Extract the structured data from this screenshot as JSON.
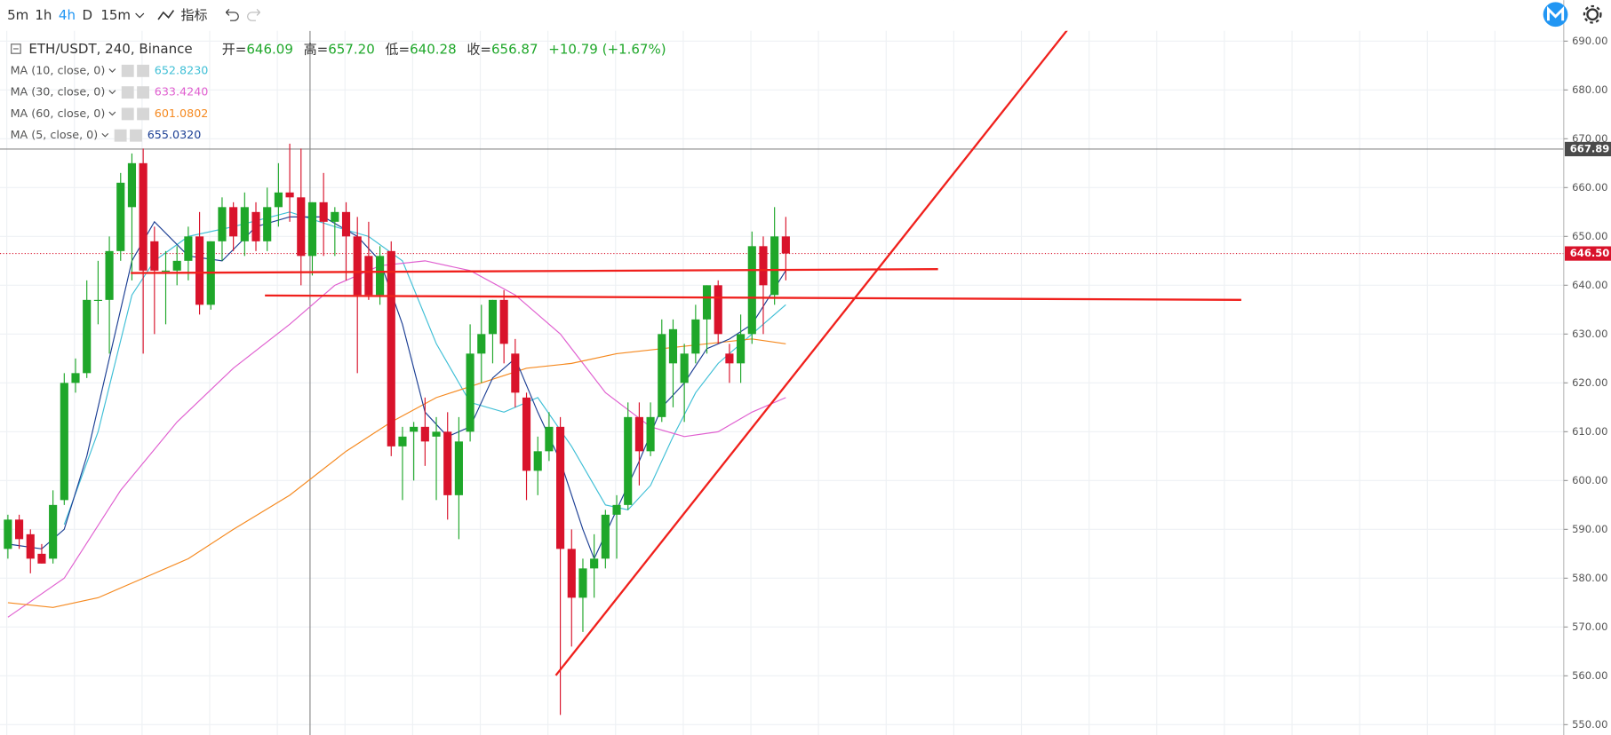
{
  "toolbar": {
    "intervals": [
      "5m",
      "1h",
      "4h",
      "D",
      "15m"
    ],
    "indicators": "指标"
  },
  "chart_data": {
    "type": "candlestick",
    "symbol": "ETH/USDT, 240, Binance",
    "ohlc": [
      {
        "label": "开=",
        "value": "646.09"
      },
      {
        "label": "高=",
        "value": "657.20"
      },
      {
        "label": "低=",
        "value": "640.28"
      },
      {
        "label": "收=",
        "value": "656.87"
      }
    ],
    "change": "+10.79 (+1.67%)",
    "up_color": "#1fa72a",
    "down_color": "#d9132b",
    "xlim": [
      -0.7,
      138
    ],
    "ylim": [
      548,
      692
    ],
    "yticks": [
      {
        "value": 550,
        "label": "550.00"
      },
      {
        "value": 560,
        "label": "560.00"
      },
      {
        "value": 570,
        "label": "570.00"
      },
      {
        "value": 580,
        "label": "580.00"
      },
      {
        "value": 590,
        "label": "590.00"
      },
      {
        "value": 600,
        "label": "600.00"
      },
      {
        "value": 610,
        "label": "610.00"
      },
      {
        "value": 620,
        "label": "620.00"
      },
      {
        "value": 630,
        "label": "630.00"
      },
      {
        "value": 640,
        "label": "640.00"
      },
      {
        "value": 650,
        "label": "650.00"
      },
      {
        "value": 660,
        "label": "660.00"
      },
      {
        "value": 670,
        "label": "670.00"
      },
      {
        "value": 680,
        "label": "680.00"
      },
      {
        "value": 690,
        "label": "690.00"
      }
    ],
    "grid": true,
    "open": [
      586,
      592,
      589,
      585,
      584,
      596,
      620,
      622,
      637,
      637,
      647,
      656,
      665,
      649,
      643,
      643,
      645,
      650,
      636,
      649,
      656,
      649,
      655,
      649,
      656,
      659,
      658,
      646,
      657,
      653,
      655,
      650,
      646,
      638,
      647,
      607,
      610,
      611,
      609,
      610,
      597,
      610,
      626,
      630,
      637,
      626,
      617,
      602,
      606,
      611,
      586,
      576,
      582,
      584,
      593,
      595,
      613,
      606,
      613,
      624,
      620,
      626,
      633,
      640,
      626,
      624,
      630,
      648,
      638,
      650
    ],
    "high": [
      593,
      593,
      590,
      587,
      598,
      622,
      625,
      641,
      645,
      650,
      663,
      667,
      668,
      652,
      647,
      648,
      652,
      655,
      649,
      658,
      657,
      659,
      657,
      660,
      665,
      669,
      668,
      657,
      663,
      656,
      657,
      654,
      653,
      648,
      649,
      611,
      612,
      617,
      613,
      614,
      613,
      632,
      636,
      637,
      639,
      629,
      618,
      609,
      614,
      613,
      590,
      584,
      589,
      594,
      597,
      616,
      616,
      616,
      633,
      633,
      628,
      636,
      640,
      641,
      628,
      634,
      651,
      650,
      656,
      654
    ],
    "low": [
      584,
      586,
      581,
      583,
      583,
      595,
      618,
      621,
      632,
      626,
      645,
      641,
      626,
      630,
      632,
      640,
      641,
      634,
      635,
      645,
      647,
      646,
      647,
      647,
      652,
      653,
      640,
      642,
      646,
      646,
      641,
      622,
      637,
      636,
      605,
      596,
      600,
      603,
      596,
      592,
      588,
      608,
      620,
      624,
      624,
      615,
      596,
      597,
      604,
      552,
      566,
      569,
      576,
      582,
      584,
      594,
      599,
      605,
      612,
      615,
      612,
      624,
      626,
      628,
      620,
      620,
      628,
      630,
      636,
      641
    ],
    "close": [
      592,
      588,
      584,
      583,
      595,
      620,
      622,
      637,
      637,
      647,
      661,
      665,
      643,
      643,
      643,
      645,
      650,
      636,
      649,
      656,
      650,
      656,
      649,
      656,
      659,
      658,
      646,
      657,
      653,
      655,
      650,
      638,
      638,
      646,
      607,
      609,
      611,
      608,
      610,
      597,
      608,
      626,
      630,
      637,
      628,
      618,
      602,
      606,
      611,
      586,
      576,
      582,
      584,
      593,
      595,
      613,
      606,
      613,
      630,
      631,
      626,
      633,
      640,
      630,
      624,
      630,
      648,
      640,
      650,
      646.5
    ],
    "ma_series": [
      {
        "name": "MA (10, close, 0)",
        "color": "#3fbfd6",
        "value_label": "652.8230",
        "x": [
          5,
          8,
          11,
          13,
          16,
          20,
          25,
          29,
          32,
          35,
          38,
          41,
          44,
          47,
          50,
          53,
          55,
          57,
          59,
          61,
          63,
          66,
          69
        ],
        "values": [
          591,
          610,
          638,
          645,
          650,
          652,
          655,
          652,
          650,
          645,
          628,
          616,
          614,
          617,
          607,
          595,
          594,
          599,
          609,
          618,
          624,
          630,
          636
        ]
      },
      {
        "name": "MA (30, close, 0)",
        "color": "#e060d0",
        "value_label": "633.4240",
        "x": [
          0,
          5,
          10,
          15,
          20,
          25,
          29,
          33,
          37,
          41,
          45,
          49,
          53,
          57,
          60,
          63,
          66,
          69
        ],
        "values": [
          572,
          580,
          598,
          612,
          623,
          632,
          640,
          644,
          645,
          643,
          638,
          630,
          618,
          611,
          609,
          610,
          614,
          617
        ]
      },
      {
        "name": "MA (60, close, 0)",
        "color": "#f5891f",
        "value_label": "601.0802",
        "x": [
          0,
          4,
          8,
          12,
          16,
          20,
          25,
          30,
          34,
          38,
          42,
          46,
          50,
          54,
          58,
          62,
          66,
          69
        ],
        "values": [
          575,
          574,
          576,
          580,
          584,
          590,
          597,
          606,
          612,
          617,
          620,
          623,
          624,
          626,
          627,
          628,
          629,
          628
        ]
      },
      {
        "name": "MA (5, close, 0)",
        "color": "#1c3f94",
        "value_label": "655.0320",
        "x": [
          0,
          3,
          5,
          7,
          9,
          11,
          13,
          16,
          19,
          22,
          25,
          28,
          31,
          33,
          35,
          37,
          39,
          41,
          43,
          45,
          47,
          49,
          51,
          52,
          54,
          56,
          58,
          60,
          62,
          64,
          66,
          69
        ],
        "values": [
          587,
          586,
          590,
          605,
          625,
          645,
          653,
          646,
          645,
          652,
          654,
          654,
          650,
          645,
          632,
          614,
          609,
          611,
          621,
          625,
          614,
          604,
          590,
          584,
          594,
          604,
          615,
          620,
          627,
          629,
          632,
          643
        ]
      }
    ],
    "drawings_color": "#f0201c",
    "drawings": [
      {
        "x": [
          10.9,
          82.5
        ],
        "y": [
          642.5,
          643.3
        ]
      },
      {
        "x": [
          22.8,
          109.4
        ],
        "y": [
          637.9,
          637.0
        ]
      },
      {
        "x": [
          48.6,
          94.9
        ],
        "y": [
          560.1,
          695
        ],
        "arrow": true
      }
    ],
    "crosshair": {
      "x": 26.8,
      "price": 667.89
    },
    "last_price": {
      "value": 646.5,
      "label": "646.50"
    }
  }
}
